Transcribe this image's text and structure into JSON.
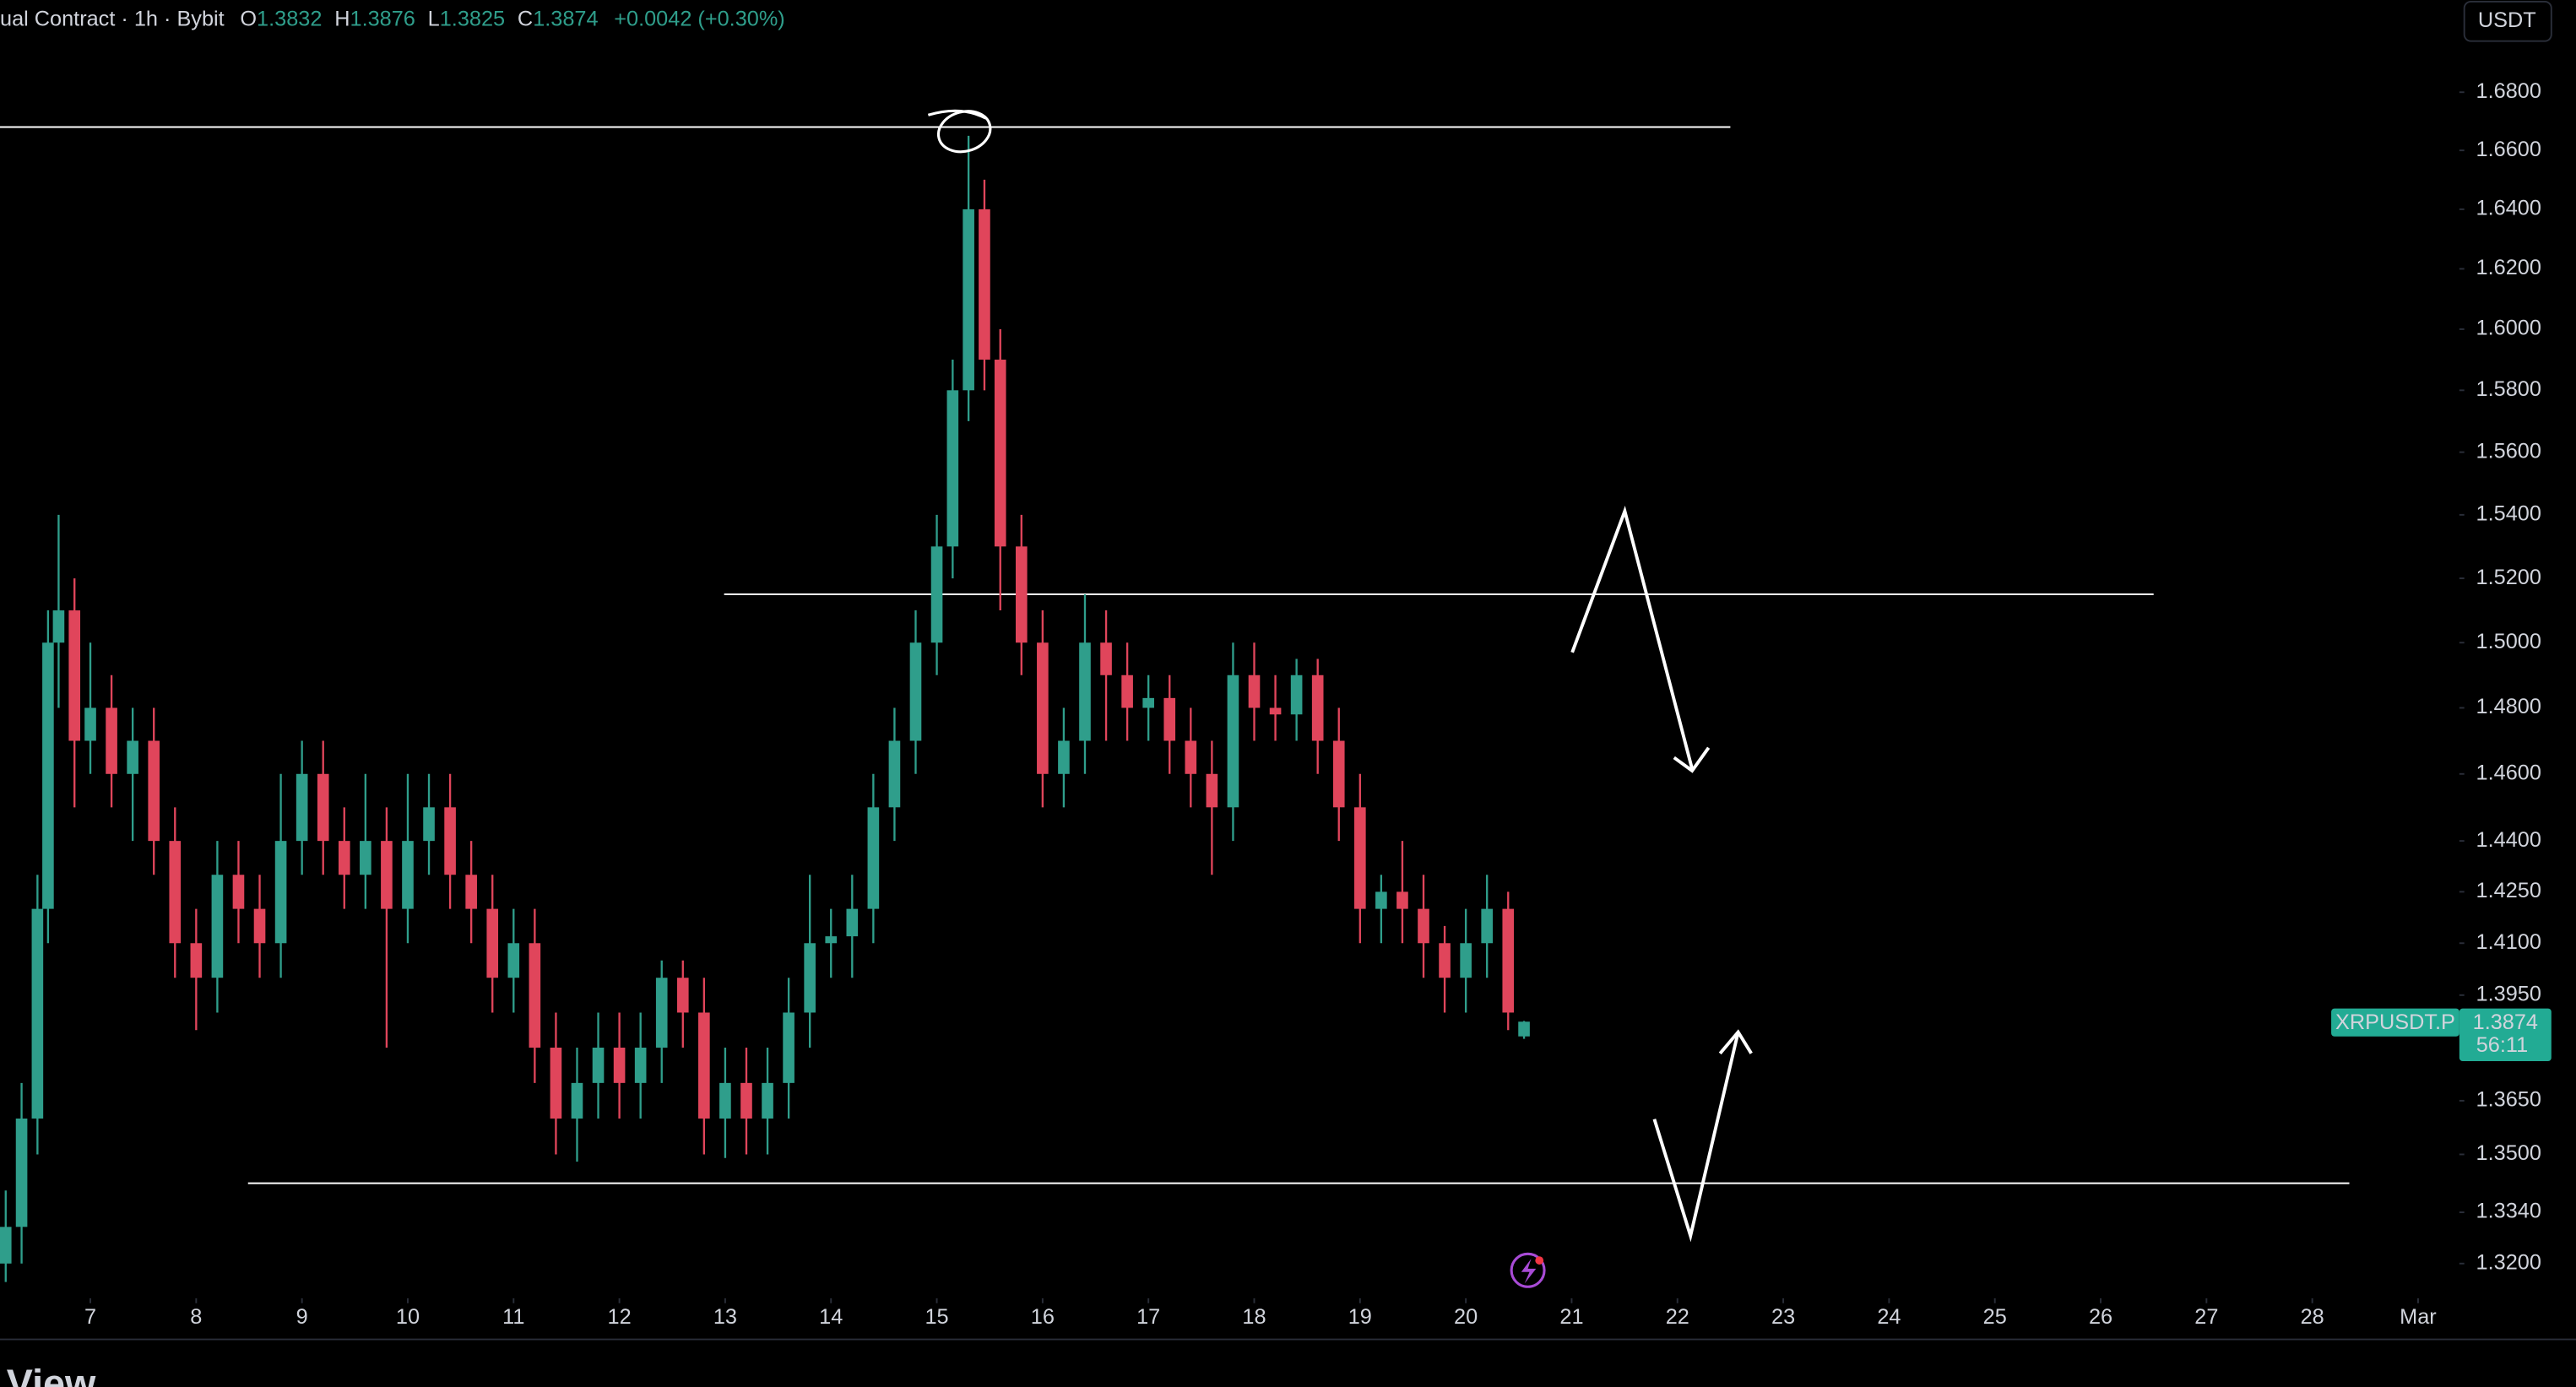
{
  "header": {
    "symbol": "ual Contract · 1h · Bybit",
    "ohlc": [
      {
        "label": "O",
        "value": "1.3832"
      },
      {
        "label": "H",
        "value": "1.3876"
      },
      {
        "label": "L",
        "value": "1.3825"
      },
      {
        "label": "C",
        "value": "1.3874"
      }
    ],
    "change": "+0.0042 (+0.30%)",
    "currency_button": "USDT"
  },
  "price_tag": {
    "symbol": "XRPUSDT.P",
    "price": "1.3874",
    "countdown": "56:11"
  },
  "footer": {
    "brand": "View"
  },
  "chart_data": {
    "type": "candlestick",
    "log_scale": true,
    "up_color": "#2f9e8b",
    "down_color": "#e0455b",
    "xlim": [
      6.146,
      29.39
    ],
    "ylim": [
      1.3106,
      1.7122
    ],
    "xticks": [
      7,
      8,
      9,
      10,
      11,
      12,
      13,
      14,
      15,
      16,
      17,
      18,
      19,
      20,
      21,
      22,
      23,
      24,
      25,
      26,
      27,
      28,
      {
        "value": 29,
        "label": "Mar"
      }
    ],
    "yticks": [
      {
        "value": 1.68,
        "label": "1.6800"
      },
      {
        "value": 1.66,
        "label": "1.6600"
      },
      {
        "value": 1.64,
        "label": "1.6400"
      },
      {
        "value": 1.62,
        "label": "1.6200"
      },
      {
        "value": 1.6,
        "label": "1.6000"
      },
      {
        "value": 1.58,
        "label": "1.5800"
      },
      {
        "value": 1.56,
        "label": "1.5600"
      },
      {
        "value": 1.54,
        "label": "1.5400"
      },
      {
        "value": 1.52,
        "label": "1.5200"
      },
      {
        "value": 1.5,
        "label": "1.5000"
      },
      {
        "value": 1.48,
        "label": "1.4800"
      },
      {
        "value": 1.46,
        "label": "1.4600"
      },
      {
        "value": 1.44,
        "label": "1.4400"
      },
      {
        "value": 1.425,
        "label": "1.4250"
      },
      {
        "value": 1.41,
        "label": "1.4100"
      },
      {
        "value": 1.395,
        "label": "1.3950"
      },
      {
        "value": 1.365,
        "label": "1.3650"
      },
      {
        "value": 1.35,
        "label": "1.3500"
      },
      {
        "value": 1.334,
        "label": "1.3340"
      },
      {
        "value": 1.32,
        "label": "1.3200"
      }
    ],
    "x": [
      6.2,
      6.35,
      6.5,
      6.6,
      6.7,
      6.85,
      7.0,
      7.2,
      7.4,
      7.6,
      7.8,
      8.0,
      8.2,
      8.4,
      8.6,
      8.8,
      9.0,
      9.2,
      9.4,
      9.6,
      9.8,
      10.0,
      10.2,
      10.4,
      10.6,
      10.8,
      11.0,
      11.2,
      11.4,
      11.6,
      11.8,
      12.0,
      12.2,
      12.4,
      12.6,
      12.8,
      13.0,
      13.2,
      13.4,
      13.6,
      13.8,
      14.0,
      14.2,
      14.4,
      14.6,
      14.8,
      15.0,
      15.15,
      15.3,
      15.45,
      15.6,
      15.8,
      16.0,
      16.2,
      16.4,
      16.6,
      16.8,
      17.0,
      17.2,
      17.4,
      17.6,
      17.8,
      18.0,
      18.2,
      18.4,
      18.6,
      18.8,
      19.0,
      19.2,
      19.4,
      19.6,
      19.8,
      20.0,
      20.2,
      20.4,
      20.55
    ],
    "open": [
      1.32,
      1.33,
      1.36,
      1.42,
      1.5,
      1.51,
      1.47,
      1.48,
      1.46,
      1.47,
      1.44,
      1.41,
      1.4,
      1.43,
      1.42,
      1.41,
      1.44,
      1.46,
      1.44,
      1.43,
      1.44,
      1.42,
      1.44,
      1.45,
      1.43,
      1.42,
      1.4,
      1.41,
      1.38,
      1.36,
      1.37,
      1.38,
      1.37,
      1.38,
      1.4,
      1.39,
      1.36,
      1.37,
      1.36,
      1.37,
      1.39,
      1.41,
      1.412,
      1.42,
      1.45,
      1.47,
      1.5,
      1.53,
      1.58,
      1.64,
      1.59,
      1.53,
      1.5,
      1.46,
      1.47,
      1.5,
      1.49,
      1.48,
      1.483,
      1.47,
      1.46,
      1.45,
      1.49,
      1.48,
      1.478,
      1.49,
      1.47,
      1.45,
      1.42,
      1.425,
      1.42,
      1.41,
      1.4,
      1.41,
      1.42,
      1.3832
    ],
    "high": [
      1.34,
      1.37,
      1.43,
      1.51,
      1.54,
      1.52,
      1.5,
      1.49,
      1.48,
      1.48,
      1.45,
      1.42,
      1.44,
      1.44,
      1.43,
      1.46,
      1.47,
      1.47,
      1.45,
      1.46,
      1.45,
      1.46,
      1.46,
      1.46,
      1.44,
      1.43,
      1.42,
      1.42,
      1.39,
      1.38,
      1.39,
      1.39,
      1.39,
      1.405,
      1.405,
      1.4,
      1.38,
      1.38,
      1.38,
      1.4,
      1.43,
      1.42,
      1.43,
      1.46,
      1.48,
      1.51,
      1.54,
      1.59,
      1.665,
      1.65,
      1.6,
      1.54,
      1.51,
      1.48,
      1.515,
      1.51,
      1.5,
      1.49,
      1.49,
      1.48,
      1.47,
      1.5,
      1.5,
      1.49,
      1.495,
      1.495,
      1.48,
      1.46,
      1.43,
      1.44,
      1.43,
      1.415,
      1.42,
      1.43,
      1.425,
      1.3876
    ],
    "low": [
      1.315,
      1.32,
      1.35,
      1.41,
      1.48,
      1.45,
      1.46,
      1.45,
      1.44,
      1.43,
      1.4,
      1.385,
      1.39,
      1.41,
      1.4,
      1.4,
      1.43,
      1.43,
      1.42,
      1.42,
      1.38,
      1.41,
      1.43,
      1.42,
      1.41,
      1.39,
      1.39,
      1.37,
      1.35,
      1.348,
      1.36,
      1.36,
      1.36,
      1.37,
      1.38,
      1.35,
      1.349,
      1.35,
      1.35,
      1.36,
      1.38,
      1.4,
      1.4,
      1.41,
      1.44,
      1.46,
      1.49,
      1.52,
      1.57,
      1.58,
      1.51,
      1.49,
      1.45,
      1.45,
      1.46,
      1.47,
      1.47,
      1.47,
      1.46,
      1.45,
      1.43,
      1.44,
      1.47,
      1.47,
      1.47,
      1.46,
      1.44,
      1.41,
      1.41,
      1.41,
      1.4,
      1.39,
      1.39,
      1.4,
      1.385,
      1.3825
    ],
    "close": [
      1.33,
      1.36,
      1.42,
      1.5,
      1.51,
      1.47,
      1.48,
      1.46,
      1.47,
      1.44,
      1.41,
      1.4,
      1.43,
      1.42,
      1.41,
      1.44,
      1.46,
      1.44,
      1.43,
      1.44,
      1.42,
      1.44,
      1.45,
      1.43,
      1.42,
      1.4,
      1.41,
      1.38,
      1.36,
      1.37,
      1.38,
      1.37,
      1.38,
      1.4,
      1.39,
      1.36,
      1.37,
      1.36,
      1.37,
      1.39,
      1.41,
      1.412,
      1.42,
      1.45,
      1.47,
      1.5,
      1.53,
      1.58,
      1.64,
      1.59,
      1.53,
      1.5,
      1.46,
      1.47,
      1.5,
      1.49,
      1.48,
      1.483,
      1.47,
      1.46,
      1.45,
      1.49,
      1.48,
      1.478,
      1.49,
      1.47,
      1.45,
      1.42,
      1.425,
      1.42,
      1.41,
      1.4,
      1.41,
      1.42,
      1.39,
      1.3874
    ],
    "levels": [
      {
        "value": 1.668,
        "from": 6.146,
        "to": 22.5
      },
      {
        "value": 1.515,
        "from": 12.99,
        "to": 26.5
      },
      {
        "value": 1.342,
        "from": 8.49,
        "to": 28.35
      }
    ]
  }
}
